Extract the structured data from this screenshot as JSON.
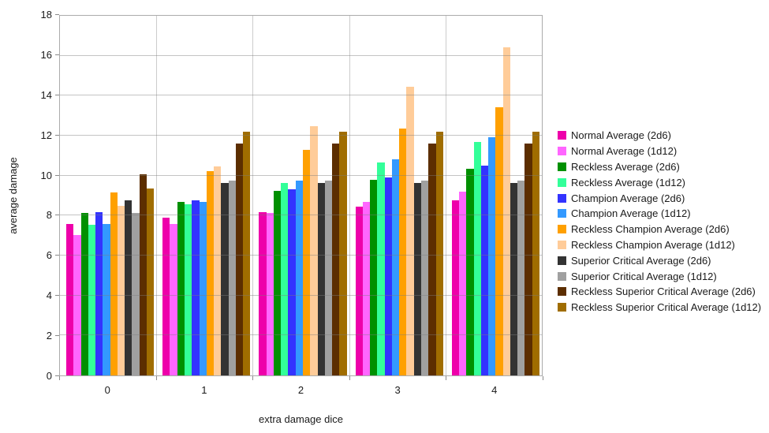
{
  "chart_data": {
    "type": "bar",
    "title": "",
    "xlabel": "extra damage dice",
    "ylabel": "average damage",
    "categories": [
      "0",
      "1",
      "2",
      "3",
      "4"
    ],
    "ylim": [
      0,
      18
    ],
    "y_ticks": [
      0,
      2,
      4,
      6,
      8,
      10,
      12,
      14,
      16,
      18
    ],
    "grid": "horizontal-major + vertical-category-boundaries",
    "legend_position": "right",
    "series": [
      {
        "name": "Normal Average (2d6)",
        "color": "#EE00AA",
        "values": [
          7.58,
          7.88,
          8.17,
          8.46,
          8.75
        ]
      },
      {
        "name": "Normal Average (1d12)",
        "color": "#FF66FF",
        "values": [
          7.04,
          7.58,
          8.13,
          8.67,
          9.21
        ]
      },
      {
        "name": "Reckless Average (2d6)",
        "color": "#009000",
        "values": [
          8.12,
          8.68,
          9.24,
          9.8,
          10.35
        ]
      },
      {
        "name": "Reckless Average (1d12)",
        "color": "#33FF99",
        "values": [
          7.54,
          8.58,
          9.62,
          10.65,
          11.69
        ]
      },
      {
        "name": "Champion Average (2d6)",
        "color": "#3333FF",
        "values": [
          8.17,
          8.75,
          9.33,
          9.92,
          10.5
        ]
      },
      {
        "name": "Champion Average (1d12)",
        "color": "#3399FF",
        "values": [
          7.58,
          8.67,
          9.75,
          10.83,
          11.92
        ]
      },
      {
        "name": "Reckless Champion Average (2d6)",
        "color": "#FFA000",
        "values": [
          9.14,
          10.21,
          11.28,
          12.35,
          13.42
        ]
      },
      {
        "name": "Reckless Champion Average (1d12)",
        "color": "#FFCC99",
        "values": [
          8.49,
          10.47,
          12.46,
          14.44,
          16.43
        ]
      },
      {
        "name": "Superior Critical Average (2d6)",
        "color": "#333333",
        "values": [
          8.75,
          9.63,
          9.63,
          9.63,
          9.63
        ]
      },
      {
        "name": "Superior Critical Average (1d12)",
        "color": "#A0A0A0",
        "values": [
          8.13,
          9.75,
          9.75,
          9.75,
          9.75
        ]
      },
      {
        "name": "Reckless Superior Critical Average (2d6)",
        "color": "#5C2E00",
        "values": [
          10.06,
          11.59,
          11.59,
          11.59,
          11.59
        ]
      },
      {
        "name": "Reckless Superior Critical Average (1d12)",
        "color": "#A06D00",
        "values": [
          9.34,
          12.19,
          12.19,
          12.19,
          12.19
        ]
      }
    ],
    "colors": {
      "background": "#FFFFFF",
      "plot_border": "#ABABAB",
      "gridline_vertical": "#CCCCCC",
      "gridline_horizontal": "#B3B3B3",
      "tick": "#8A8A8A",
      "text": "#1A1A1A"
    }
  }
}
